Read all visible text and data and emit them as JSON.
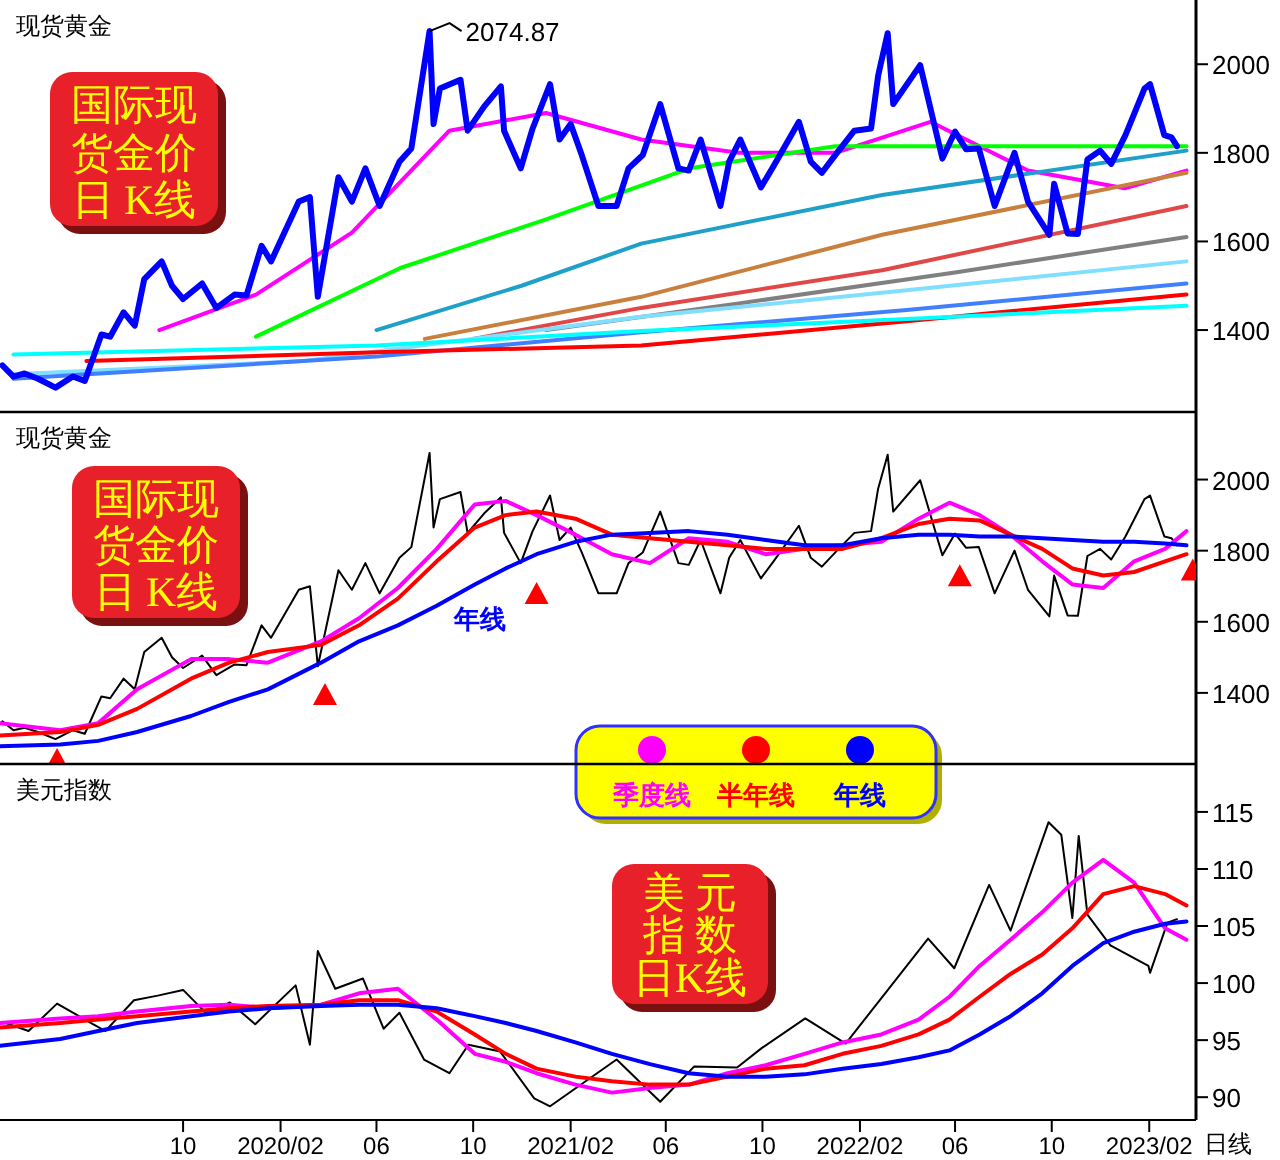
{
  "chart_data": [
    {
      "type": "line",
      "title": "现货黄金",
      "xlim": [
        "2019-02-12",
        "2023-04-01"
      ],
      "ylim": [
        1215,
        2145
      ],
      "yticks": [
        1400,
        1600,
        1800,
        2000
      ],
      "tick_labels": "y",
      "annotations": [
        {
          "text": "2074.87",
          "x": "2020-08-07",
          "y": 2074.87
        },
        "国际现货金价日  K线"
      ],
      "series": [
        {
          "color": "#ff00ff",
          "x": [
            "2019-09-01",
            "2020-01-01",
            "2020-05-01",
            "2020-09-01",
            "2021-01-01",
            "2021-05-01",
            "2021-09-01",
            "2022-01-01",
            "2022-05-01",
            "2022-09-01",
            "2023-01-01",
            "2023-03-20"
          ],
          "values": [
            1400,
            1480,
            1620,
            1850,
            1890,
            1830,
            1800,
            1800,
            1870,
            1760,
            1720,
            1760
          ]
        },
        {
          "color": "#00ff00",
          "x": [
            "2020-01-01",
            "2020-07-01",
            "2021-01-01",
            "2021-07-01",
            "2022-01-01",
            "2022-07-01",
            "2023-03-20"
          ],
          "values": [
            1385,
            1540,
            1650,
            1765,
            1815,
            1815,
            1815
          ]
        },
        {
          "color": "#1fa0c8",
          "x": [
            "2020-06-01",
            "2020-12-01",
            "2021-05-01",
            "2022-03-01",
            "2023-03-20"
          ],
          "values": [
            1400,
            1500,
            1595,
            1705,
            1805
          ]
        },
        {
          "color": "#c8803c",
          "x": [
            "2020-08-01",
            "2021-05-01",
            "2022-03-01",
            "2023-03-20"
          ],
          "values": [
            1380,
            1475,
            1615,
            1755
          ]
        },
        {
          "color": "#e04848",
          "x": [
            "2020-10-01",
            "2021-05-01",
            "2022-03-01",
            "2023-03-20"
          ],
          "values": [
            1380,
            1450,
            1535,
            1680
          ]
        },
        {
          "color": "#808080",
          "x": [
            "2021-01-01",
            "2021-09-01",
            "2022-06-01",
            "2023-03-20"
          ],
          "values": [
            1400,
            1460,
            1530,
            1610
          ]
        },
        {
          "color": "#80dfff",
          "x": [
            "2019-03-01",
            "2020-03-01",
            "2021-05-01",
            "2022-04-01",
            "2023-03-20"
          ],
          "values": [
            1300,
            1330,
            1430,
            1490,
            1555
          ]
        },
        {
          "color": "#4080ff",
          "x": [
            "2019-03-01",
            "2020-06-01",
            "2021-05-01",
            "2022-04-01",
            "2023-03-20"
          ],
          "values": [
            1290,
            1340,
            1395,
            1445,
            1505
          ]
        },
        {
          "color": "#ff0000",
          "x": [
            "2019-06-01",
            "2020-06-01",
            "2021-05-01",
            "2022-04-01",
            "2023-03-20"
          ],
          "values": [
            1330,
            1350,
            1365,
            1420,
            1480
          ]
        },
        {
          "color": "#00ffff",
          "x": [
            "2019-03-01",
            "2020-06-01",
            "2021-05-01",
            "2022-04-01",
            "2023-03-20"
          ],
          "values": [
            1345,
            1365,
            1398,
            1425,
            1455
          ]
        },
        {
          "color": "#0000ff",
          "x": [
            "2019-02-15",
            "2019-03-01",
            "2019-03-15",
            "2019-04-01",
            "2019-04-23",
            "2019-05-15",
            "2019-05-30",
            "2019-06-20",
            "2019-07-01",
            "2019-07-18",
            "2019-08-01",
            "2019-08-13",
            "2019-09-04",
            "2019-09-17",
            "2019-10-01",
            "2019-10-25",
            "2019-11-12",
            "2019-12-05",
            "2019-12-20",
            "2020-01-08",
            "2020-01-20",
            "2020-02-24",
            "2020-03-09",
            "2020-03-19",
            "2020-04-14",
            "2020-05-01",
            "2020-05-18",
            "2020-06-05",
            "2020-06-30",
            "2020-07-15",
            "2020-08-07",
            "2020-08-12",
            "2020-08-20",
            "2020-09-15",
            "2020-09-24",
            "2020-10-15",
            "2020-11-05",
            "2020-11-09",
            "2020-11-30",
            "2020-12-15",
            "2021-01-06",
            "2021-01-18",
            "2021-02-01",
            "2021-02-15",
            "2021-03-08",
            "2021-03-31",
            "2021-04-15",
            "2021-05-03",
            "2021-05-25",
            "2021-06-17",
            "2021-06-30",
            "2021-07-15",
            "2021-08-09",
            "2021-08-20",
            "2021-09-03",
            "2021-09-29",
            "2021-10-15",
            "2021-11-16",
            "2021-12-01",
            "2021-12-15",
            "2022-01-03",
            "2022-01-25",
            "2022-02-15",
            "2022-02-24",
            "2022-03-08",
            "2022-03-15",
            "2022-04-18",
            "2022-05-16",
            "2022-06-01",
            "2022-06-15",
            "2022-07-01",
            "2022-07-21",
            "2022-08-15",
            "2022-09-01",
            "2022-09-28",
            "2022-10-04",
            "2022-10-21",
            "2022-11-03",
            "2022-11-15",
            "2022-12-01",
            "2022-12-15",
            "2023-01-02",
            "2023-01-26",
            "2023-02-02",
            "2023-02-20",
            "2023-03-01",
            "2023-03-08"
          ],
          "values": [
            1320,
            1295,
            1302,
            1290,
            1270,
            1295,
            1285,
            1390,
            1385,
            1440,
            1410,
            1515,
            1555,
            1500,
            1470,
            1505,
            1450,
            1480,
            1478,
            1590,
            1555,
            1690,
            1700,
            1475,
            1745,
            1690,
            1765,
            1680,
            1780,
            1810,
            2074.87,
            1865,
            1945,
            1965,
            1850,
            1905,
            1950,
            1850,
            1765,
            1855,
            1955,
            1830,
            1865,
            1795,
            1680,
            1680,
            1765,
            1795,
            1910,
            1765,
            1760,
            1830,
            1680,
            1780,
            1830,
            1722,
            1770,
            1870,
            1780,
            1755,
            1800,
            1850,
            1855,
            1975,
            2070,
            1910,
            1998,
            1787,
            1848,
            1808,
            1810,
            1680,
            1800,
            1690,
            1615,
            1730,
            1618,
            1617,
            1785,
            1805,
            1775,
            1840,
            1945,
            1955,
            1840,
            1835,
            1815
          ]
        }
      ]
    },
    {
      "type": "line",
      "title": "现货黄金",
      "xlim": [
        "2019-02-12",
        "2023-04-01"
      ],
      "ylim": [
        1200,
        2190
      ],
      "yticks": [
        1400,
        1600,
        1800,
        2000
      ],
      "tick_labels": "y",
      "legend": "bottom",
      "annotations": [
        "国际现货金价日  K线",
        "年线"
      ],
      "x": [
        "2019-02-12",
        "2019-04-29",
        "2019-06-16",
        "2019-08-04",
        "2019-10-11",
        "2019-11-28",
        "2020-01-16",
        "2020-03-23",
        "2020-05-10",
        "2020-06-28",
        "2020-08-16",
        "2020-10-03",
        "2020-11-11",
        "2020-12-20",
        "2021-02-07",
        "2021-03-25",
        "2021-05-12",
        "2021-06-30",
        "2021-08-18",
        "2021-10-05",
        "2021-11-23",
        "2022-01-10",
        "2022-02-28",
        "2022-04-16",
        "2022-05-25",
        "2022-07-02",
        "2022-08-10",
        "2022-09-19",
        "2022-10-27",
        "2022-12-05",
        "2023-01-13",
        "2023-02-21",
        "2023-03-20"
      ],
      "series": [
        {
          "color": "#000000",
          "x": [
            "2019-02-15",
            "2019-03-01",
            "2019-03-15",
            "2019-04-01",
            "2019-04-23",
            "2019-05-15",
            "2019-05-30",
            "2019-06-20",
            "2019-07-01",
            "2019-07-18",
            "2019-08-01",
            "2019-08-13",
            "2019-09-04",
            "2019-09-17",
            "2019-10-01",
            "2019-10-25",
            "2019-11-12",
            "2019-12-05",
            "2019-12-20",
            "2020-01-08",
            "2020-01-20",
            "2020-02-24",
            "2020-03-09",
            "2020-03-19",
            "2020-04-14",
            "2020-05-01",
            "2020-05-18",
            "2020-06-05",
            "2020-06-30",
            "2020-07-15",
            "2020-08-07",
            "2020-08-12",
            "2020-08-20",
            "2020-09-15",
            "2020-09-24",
            "2020-10-15",
            "2020-11-05",
            "2020-11-09",
            "2020-11-30",
            "2020-12-15",
            "2021-01-06",
            "2021-01-18",
            "2021-02-01",
            "2021-02-15",
            "2021-03-08",
            "2021-03-31",
            "2021-04-15",
            "2021-05-03",
            "2021-05-25",
            "2021-06-17",
            "2021-06-30",
            "2021-07-15",
            "2021-08-09",
            "2021-08-20",
            "2021-09-03",
            "2021-09-29",
            "2021-10-15",
            "2021-11-16",
            "2021-12-01",
            "2021-12-15",
            "2022-01-03",
            "2022-01-25",
            "2022-02-15",
            "2022-02-24",
            "2022-03-08",
            "2022-03-15",
            "2022-04-18",
            "2022-05-16",
            "2022-06-01",
            "2022-06-15",
            "2022-07-01",
            "2022-07-21",
            "2022-08-15",
            "2022-09-01",
            "2022-09-28",
            "2022-10-04",
            "2022-10-21",
            "2022-11-03",
            "2022-11-15",
            "2022-12-01",
            "2022-12-15",
            "2023-01-02",
            "2023-01-26",
            "2023-02-02",
            "2023-02-20",
            "2023-03-01",
            "2023-03-08"
          ],
          "values": [
            1320,
            1295,
            1302,
            1290,
            1270,
            1295,
            1285,
            1390,
            1385,
            1440,
            1410,
            1515,
            1555,
            1500,
            1470,
            1505,
            1450,
            1480,
            1478,
            1590,
            1555,
            1690,
            1700,
            1475,
            1745,
            1690,
            1765,
            1680,
            1780,
            1810,
            2074.87,
            1865,
            1945,
            1965,
            1850,
            1905,
            1950,
            1850,
            1765,
            1855,
            1955,
            1830,
            1865,
            1795,
            1680,
            1680,
            1765,
            1795,
            1910,
            1765,
            1760,
            1830,
            1680,
            1780,
            1830,
            1722,
            1770,
            1870,
            1780,
            1755,
            1800,
            1850,
            1855,
            1975,
            2070,
            1910,
            1998,
            1787,
            1848,
            1808,
            1810,
            1680,
            1800,
            1690,
            1615,
            1730,
            1618,
            1617,
            1785,
            1805,
            1775,
            1840,
            1945,
            1955,
            1840,
            1835,
            1815
          ]
        },
        {
          "name": "季度线",
          "color": "#ff00ff",
          "values": [
            1315,
            1295,
            1315,
            1410,
            1495,
            1495,
            1485,
            1545,
            1610,
            1695,
            1805,
            1930,
            1940,
            1900,
            1845,
            1790,
            1765,
            1835,
            1825,
            1790,
            1805,
            1815,
            1825,
            1890,
            1935,
            1900,
            1845,
            1770,
            1705,
            1695,
            1770,
            1805,
            1855
          ]
        },
        {
          "name": "半年线",
          "color": "#ff0000",
          "values": [
            1280,
            1290,
            1310,
            1355,
            1440,
            1485,
            1515,
            1535,
            1590,
            1665,
            1770,
            1865,
            1900,
            1910,
            1890,
            1845,
            1835,
            1825,
            1815,
            1805,
            1805,
            1805,
            1835,
            1875,
            1890,
            1885,
            1845,
            1805,
            1750,
            1730,
            1740,
            1770,
            1790
          ]
        },
        {
          "name": "年线",
          "color": "#0000ff",
          "values": [
            1250,
            1255,
            1265,
            1290,
            1335,
            1375,
            1410,
            1485,
            1545,
            1590,
            1645,
            1705,
            1750,
            1790,
            1825,
            1845,
            1850,
            1855,
            1845,
            1830,
            1815,
            1815,
            1835,
            1845,
            1845,
            1840,
            1840,
            1835,
            1830,
            1825,
            1825,
            1820,
            1815
          ]
        },
        {
          "type": "scatter",
          "marker": "triangle",
          "color": "#ff0000",
          "x": [
            "2019-04-25",
            "2020-03-28",
            "2020-12-20",
            "2022-06-07",
            "2023-03-28"
          ],
          "values": [
            1211,
            1394,
            1678,
            1728,
            1744
          ]
        }
      ]
    },
    {
      "type": "line",
      "title": "美元指数",
      "xlim": [
        "2019-02-12",
        "2023-04-01"
      ],
      "ylim": [
        88,
        119.2
      ],
      "yticks": [
        90,
        95,
        100,
        105,
        110,
        115
      ],
      "xticks": [
        {
          "value": "2019-10",
          "label": "10"
        },
        {
          "value": "2020-02",
          "label": "2020/02"
        },
        {
          "value": "2020-06",
          "label": "06"
        },
        {
          "value": "2020-10",
          "label": "10"
        },
        {
          "value": "2021-02",
          "label": "2021/02"
        },
        {
          "value": "2021-06",
          "label": "06"
        },
        {
          "value": "2021-10",
          "label": "10"
        },
        {
          "value": "2022-02",
          "label": "2022/02"
        },
        {
          "value": "2022-06",
          "label": "06"
        },
        {
          "value": "2022-10",
          "label": "10"
        },
        {
          "value": "2023-02",
          "label": "2023/02"
        }
      ],
      "annotations": [
        "美  元指  数日K线",
        "日线"
      ],
      "x": [
        "2019-02-12",
        "2019-04-29",
        "2019-06-16",
        "2019-08-04",
        "2019-10-11",
        "2019-11-28",
        "2020-01-16",
        "2020-03-23",
        "2020-05-10",
        "2020-06-28",
        "2020-08-16",
        "2020-10-03",
        "2020-11-11",
        "2020-12-20",
        "2021-02-07",
        "2021-03-25",
        "2021-05-12",
        "2021-06-30",
        "2021-08-18",
        "2021-10-05",
        "2021-11-23",
        "2022-01-10",
        "2022-02-28",
        "2022-04-16",
        "2022-05-25",
        "2022-07-02",
        "2022-08-10",
        "2022-09-19",
        "2022-10-27",
        "2022-12-05",
        "2023-01-13",
        "2023-02-21",
        "2023-03-20"
      ],
      "series": [
        {
          "color": "#000000",
          "x": [
            "2019-02-15",
            "2019-03-20",
            "2019-04-25",
            "2019-06-07",
            "2019-06-25",
            "2019-07-31",
            "2019-08-30",
            "2019-10-01",
            "2019-10-31",
            "2019-11-29",
            "2019-12-31",
            "2020-02-20",
            "2020-03-09",
            "2020-03-19",
            "2020-04-10",
            "2020-05-15",
            "2020-06-10",
            "2020-06-30",
            "2020-07-31",
            "2020-09-01",
            "2020-09-25",
            "2020-11-04",
            "2020-12-17",
            "2021-01-06",
            "2021-03-31",
            "2021-05-25",
            "2021-07-07",
            "2021-08-30",
            "2021-09-30",
            "2021-11-24",
            "2022-01-14",
            "2022-03-07",
            "2022-04-28",
            "2022-05-31",
            "2022-07-14",
            "2022-08-10",
            "2022-09-27",
            "2022-10-13",
            "2022-10-27",
            "2022-11-04",
            "2022-11-15",
            "2022-12-14",
            "2023-01-31",
            "2023-02-02",
            "2023-02-24",
            "2023-03-08"
          ],
          "values": [
            96.6,
            95.8,
            98.2,
            96.5,
            95.8,
            98.5,
            98.9,
            99.4,
            97.3,
            98.3,
            96.4,
            99.8,
            94.6,
            102.8,
            99.5,
            100.4,
            96.0,
            97.4,
            93.3,
            92.1,
            94.6,
            94.0,
            89.9,
            89.2,
            93.3,
            89.6,
            92.7,
            92.6,
            94.3,
            96.9,
            94.7,
            99.3,
            103.9,
            101.3,
            108.6,
            104.6,
            114.1,
            113.0,
            105.7,
            112.9,
            106.0,
            103.3,
            101.5,
            100.9,
            105.3,
            105.6
          ]
        },
        {
          "color": "#ff00ff",
          "values": [
            96.5,
            96.9,
            97.1,
            97.5,
            98.0,
            98.1,
            97.8,
            98.1,
            99.1,
            99.5,
            96.8,
            93.8,
            93.1,
            92.1,
            91.1,
            90.4,
            90.8,
            91.1,
            92.1,
            92.8,
            93.8,
            94.8,
            95.5,
            96.8,
            98.8,
            101.5,
            103.8,
            106.2,
            108.8,
            110.8,
            108.8,
            104.8,
            103.8
          ]
        },
        {
          "color": "#ff0000",
          "values": [
            96.1,
            96.5,
            96.8,
            97.1,
            97.5,
            97.8,
            98.0,
            98.1,
            98.5,
            98.5,
            97.5,
            95.5,
            93.8,
            92.5,
            91.8,
            91.4,
            91.1,
            91.1,
            91.8,
            92.5,
            92.8,
            93.8,
            94.5,
            95.5,
            96.8,
            98.8,
            100.8,
            102.5,
            104.8,
            107.8,
            108.5,
            107.8,
            106.8
          ]
        },
        {
          "color": "#0000ff",
          "values": [
            94.5,
            95.1,
            95.8,
            96.5,
            97.1,
            97.5,
            97.8,
            98.0,
            98.1,
            98.1,
            97.8,
            97.1,
            96.5,
            95.8,
            94.8,
            93.8,
            92.9,
            92.1,
            91.8,
            91.8,
            92.0,
            92.5,
            92.9,
            93.5,
            94.1,
            95.5,
            97.1,
            99.1,
            101.5,
            103.5,
            104.5,
            105.2,
            105.4
          ]
        }
      ]
    }
  ]
}
